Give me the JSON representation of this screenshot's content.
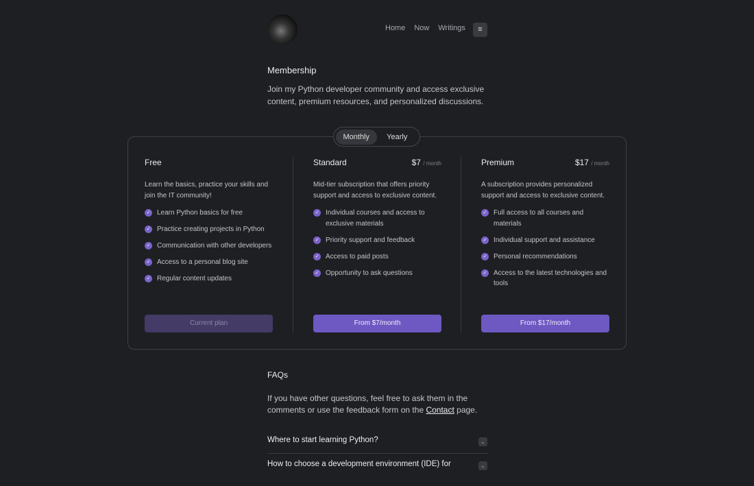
{
  "nav": {
    "items": [
      "Home",
      "Now",
      "Writings"
    ],
    "menu_icon": "menu-icon"
  },
  "page": {
    "title": "Membership",
    "intro": "Join my Python developer community and access exclusive content, premium resources, and personalized discussions."
  },
  "billing_toggle": {
    "options": [
      "Monthly",
      "Yearly"
    ],
    "selected": "Monthly"
  },
  "plans": [
    {
      "name": "Free",
      "price": "",
      "period": "",
      "description": "Learn the basics, practice your skills and join the IT community!",
      "features": [
        "Learn Python basics for free",
        "Practice creating projects in Python",
        "Communication with other developers",
        "Access to a personal blog site",
        "Regular content updates"
      ],
      "button": "Current plan"
    },
    {
      "name": "Standard",
      "price": "$7",
      "period": "/ month",
      "description": "Mid-tier subscription that offers priority support and access to exclusive content.",
      "features": [
        "Individual courses and access to exclusive materials",
        "Priority support and feedback",
        "Access to paid posts",
        "Opportunity to ask questions"
      ],
      "button": "From $7/month"
    },
    {
      "name": "Premium",
      "price": "$17",
      "period": "/ month",
      "description": "A subscription provides personalized support and access to exclusive content.",
      "features": [
        "Full access to all courses and materials",
        "Individual support and assistance",
        "Personal recommendations",
        "Access to the latest technologies and tools"
      ],
      "button": "From $17/month"
    }
  ],
  "faq": {
    "title": "FAQs",
    "text_before": "If you have other questions, feel free to ask them in the comments or use the feedback form on the ",
    "link": "Contact",
    "text_after": " page.",
    "questions": [
      "Where to start learning Python?",
      "How to choose a development environment (IDE) for"
    ]
  },
  "colors": {
    "accent": "#6e58c2",
    "background": "#1e1f23"
  }
}
